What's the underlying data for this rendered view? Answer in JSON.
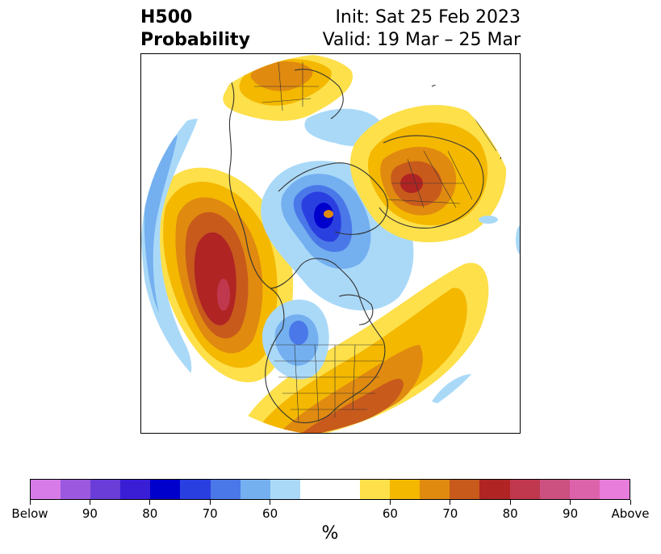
{
  "title": {
    "left_line1": "H500",
    "left_line2": "Probability",
    "right_line1": "Init: Sat 25 Feb 2023",
    "right_line2": "Valid: 19 Mar – 25 Mar"
  },
  "colors": {
    "below": [
      "#d67be8",
      "#9c59e0",
      "#6a3dd8",
      "#3a1ed6",
      "#0000cc",
      "#2a3fe0",
      "#4a78e8",
      "#74b0f0",
      "#aad9f8"
    ],
    "neutral": "#ffffff",
    "above": [
      "#fde04a",
      "#f4b800",
      "#e08a10",
      "#c85a1c",
      "#b02424",
      "#c0384e",
      "#cc5080",
      "#dc62aa",
      "#e87ddc"
    ],
    "coast": "#333333"
  },
  "colorbar": {
    "labels": [
      "Below",
      "90",
      "80",
      "70",
      "60",
      "60",
      "70",
      "80",
      "90",
      "Above"
    ],
    "unit": "%"
  }
}
